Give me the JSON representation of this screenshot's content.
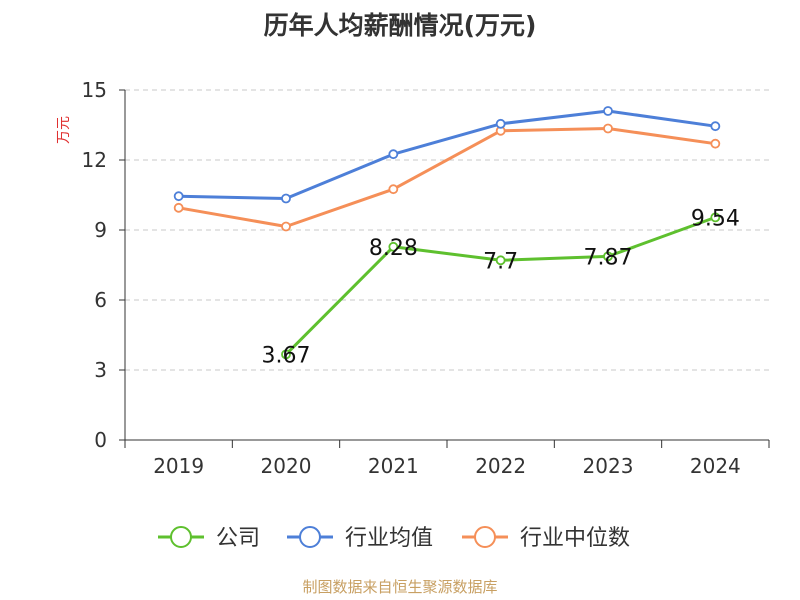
{
  "title": "历年人均薪酬情况(万元)",
  "footer": "制图数据来自恒生聚源数据库",
  "chart_data": {
    "type": "line",
    "title": "历年人均薪酬情况(万元)",
    "ylabel": "万元",
    "xlabel": "",
    "categories": [
      "2019",
      "2020",
      "2021",
      "2022",
      "2023",
      "2024"
    ],
    "ylim": [
      0,
      15
    ],
    "yticks": [
      0,
      3,
      6,
      9,
      12,
      15
    ],
    "grid": true,
    "legend_position": "bottom",
    "series": [
      {
        "name": "公司",
        "color": "#5ec02e",
        "values": [
          null,
          3.67,
          8.28,
          7.7,
          7.87,
          9.54
        ],
        "labels": [
          null,
          "3.67",
          "8.28",
          "7.7",
          "7.87",
          "9.54"
        ]
      },
      {
        "name": "行业均值",
        "color": "#4d7fd8",
        "values": [
          10.45,
          10.35,
          12.25,
          13.55,
          14.1,
          13.45
        ]
      },
      {
        "name": "行业中位数",
        "color": "#f58f58",
        "values": [
          9.95,
          9.15,
          10.75,
          13.25,
          13.35,
          12.7
        ]
      }
    ]
  }
}
